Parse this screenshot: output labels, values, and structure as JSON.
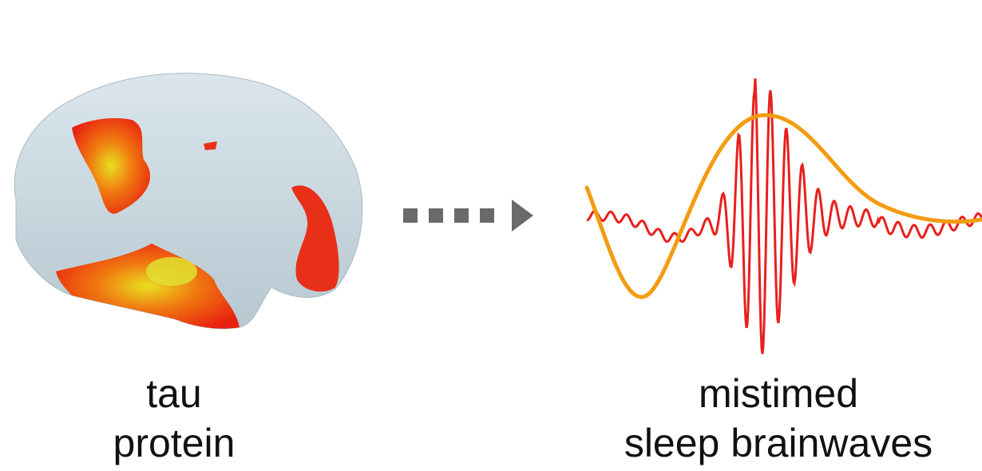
{
  "left_caption": {
    "line1": "tau",
    "line2": "protein"
  },
  "right_caption": {
    "line1": "mistimed",
    "line2": "sleep brainwaves"
  }
}
